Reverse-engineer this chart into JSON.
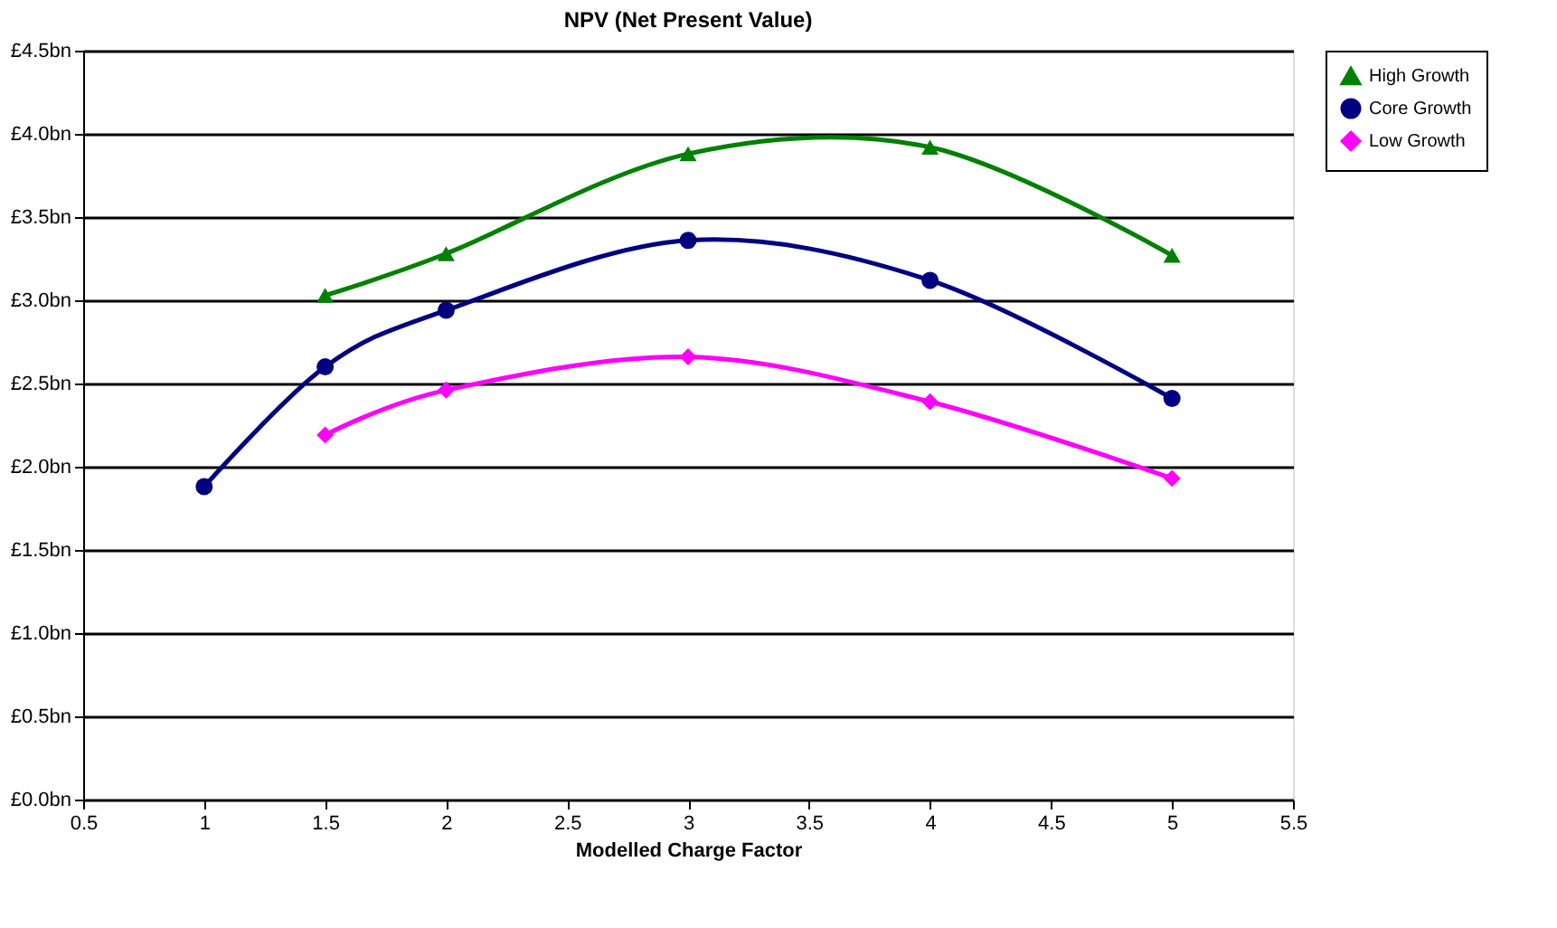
{
  "chart_data": {
    "type": "line",
    "title": "NPV (Net Present Value)",
    "xlabel": "Modelled Charge Factor",
    "xlim": [
      0.5,
      5.5
    ],
    "xticks": [
      0.5,
      1,
      1.5,
      2,
      2.5,
      3,
      3.5,
      4,
      4.5,
      5,
      5.5
    ],
    "ylim": [
      0,
      4.5
    ],
    "yticks": [
      {
        "value": 0,
        "label": "£0.0bn"
      },
      {
        "value": 0.5,
        "label": "£0.5bn"
      },
      {
        "value": 1,
        "label": "£1.0bn"
      },
      {
        "value": 1.5,
        "label": "£1.5bn"
      },
      {
        "value": 2,
        "label": "£2.0bn"
      },
      {
        "value": 2.5,
        "label": "£2.5bn"
      },
      {
        "value": 3,
        "label": "£3.0bn"
      },
      {
        "value": 3.5,
        "label": "£3.5bn"
      },
      {
        "value": 4,
        "label": "£4.0bn"
      },
      {
        "value": 4.5,
        "label": "£4.5bn"
      }
    ],
    "grid": "y",
    "legend": "right",
    "line_style": "solid",
    "series": [
      {
        "name": "High Growth",
        "color": "#008000",
        "marker": "triangle",
        "x": [
          1.5,
          2,
          3,
          4,
          5
        ],
        "values": [
          3.03,
          3.28,
          3.88,
          3.92,
          3.27
        ]
      },
      {
        "name": "Core Growth",
        "color": "#000080",
        "marker": "circle",
        "x": [
          1,
          1.5,
          2,
          3,
          4,
          5
        ],
        "values": [
          1.88,
          2.6,
          2.94,
          3.36,
          3.12,
          2.41
        ]
      },
      {
        "name": "Low Growth",
        "color": "#ff00ff",
        "marker": "diamond",
        "x": [
          1.5,
          2,
          3,
          4,
          5
        ],
        "values": [
          2.19,
          2.46,
          2.66,
          2.39,
          1.93
        ]
      }
    ]
  }
}
